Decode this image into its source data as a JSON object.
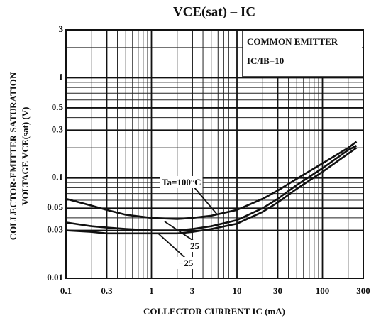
{
  "chart_data": {
    "type": "line",
    "title": "VCE(sat) – IC",
    "xlabel": "COLLECTOR CURRENT  IC  (mA)",
    "ylabel": [
      "COLLECTOR-EMITTER SATURATION",
      "VOLTAGE   VCE(sat)   (V)"
    ],
    "annotations": [
      "COMMON EMITTER",
      "IC/IB=10"
    ],
    "xscale": "log",
    "yscale": "log",
    "grid": true,
    "xlim": [
      0.1,
      300
    ],
    "ylim": [
      0.01,
      3
    ],
    "xticks": [
      0.1,
      0.3,
      1,
      3,
      10,
      30,
      100,
      300
    ],
    "yticks": [
      0.01,
      0.03,
      0.05,
      0.1,
      0.3,
      0.5,
      1,
      3
    ],
    "x_minor_ticks": [
      0.2,
      0.4,
      0.5,
      0.6,
      0.7,
      0.8,
      0.9,
      2,
      4,
      5,
      6,
      7,
      8,
      9,
      20,
      40,
      50,
      60,
      70,
      80,
      90,
      200
    ],
    "y_minor_ticks": [
      0.02,
      0.04,
      0.06,
      0.07,
      0.08,
      0.09,
      0.2,
      0.4,
      0.6,
      0.7,
      0.8,
      0.9,
      2
    ],
    "x": [
      0.1,
      0.2,
      0.3,
      0.5,
      1,
      2,
      3,
      5,
      10,
      20,
      30,
      50,
      100,
      200,
      250
    ],
    "series": [
      {
        "name": "Ta=100°C",
        "color": "#111111",
        "values": [
          0.062,
          0.053,
          0.048,
          0.043,
          0.04,
          0.039,
          0.04,
          0.042,
          0.048,
          0.062,
          0.075,
          0.098,
          0.14,
          0.2,
          0.23
        ]
      },
      {
        "name": "25",
        "color": "#111111",
        "values": [
          0.036,
          0.033,
          0.032,
          0.031,
          0.03,
          0.03,
          0.031,
          0.033,
          0.038,
          0.05,
          0.062,
          0.085,
          0.125,
          0.19,
          0.21
        ]
      },
      {
        "name": "−25",
        "color": "#111111",
        "values": [
          0.03,
          0.029,
          0.028,
          0.028,
          0.028,
          0.028,
          0.029,
          0.031,
          0.035,
          0.046,
          0.057,
          0.078,
          0.115,
          0.175,
          0.2
        ]
      }
    ]
  }
}
